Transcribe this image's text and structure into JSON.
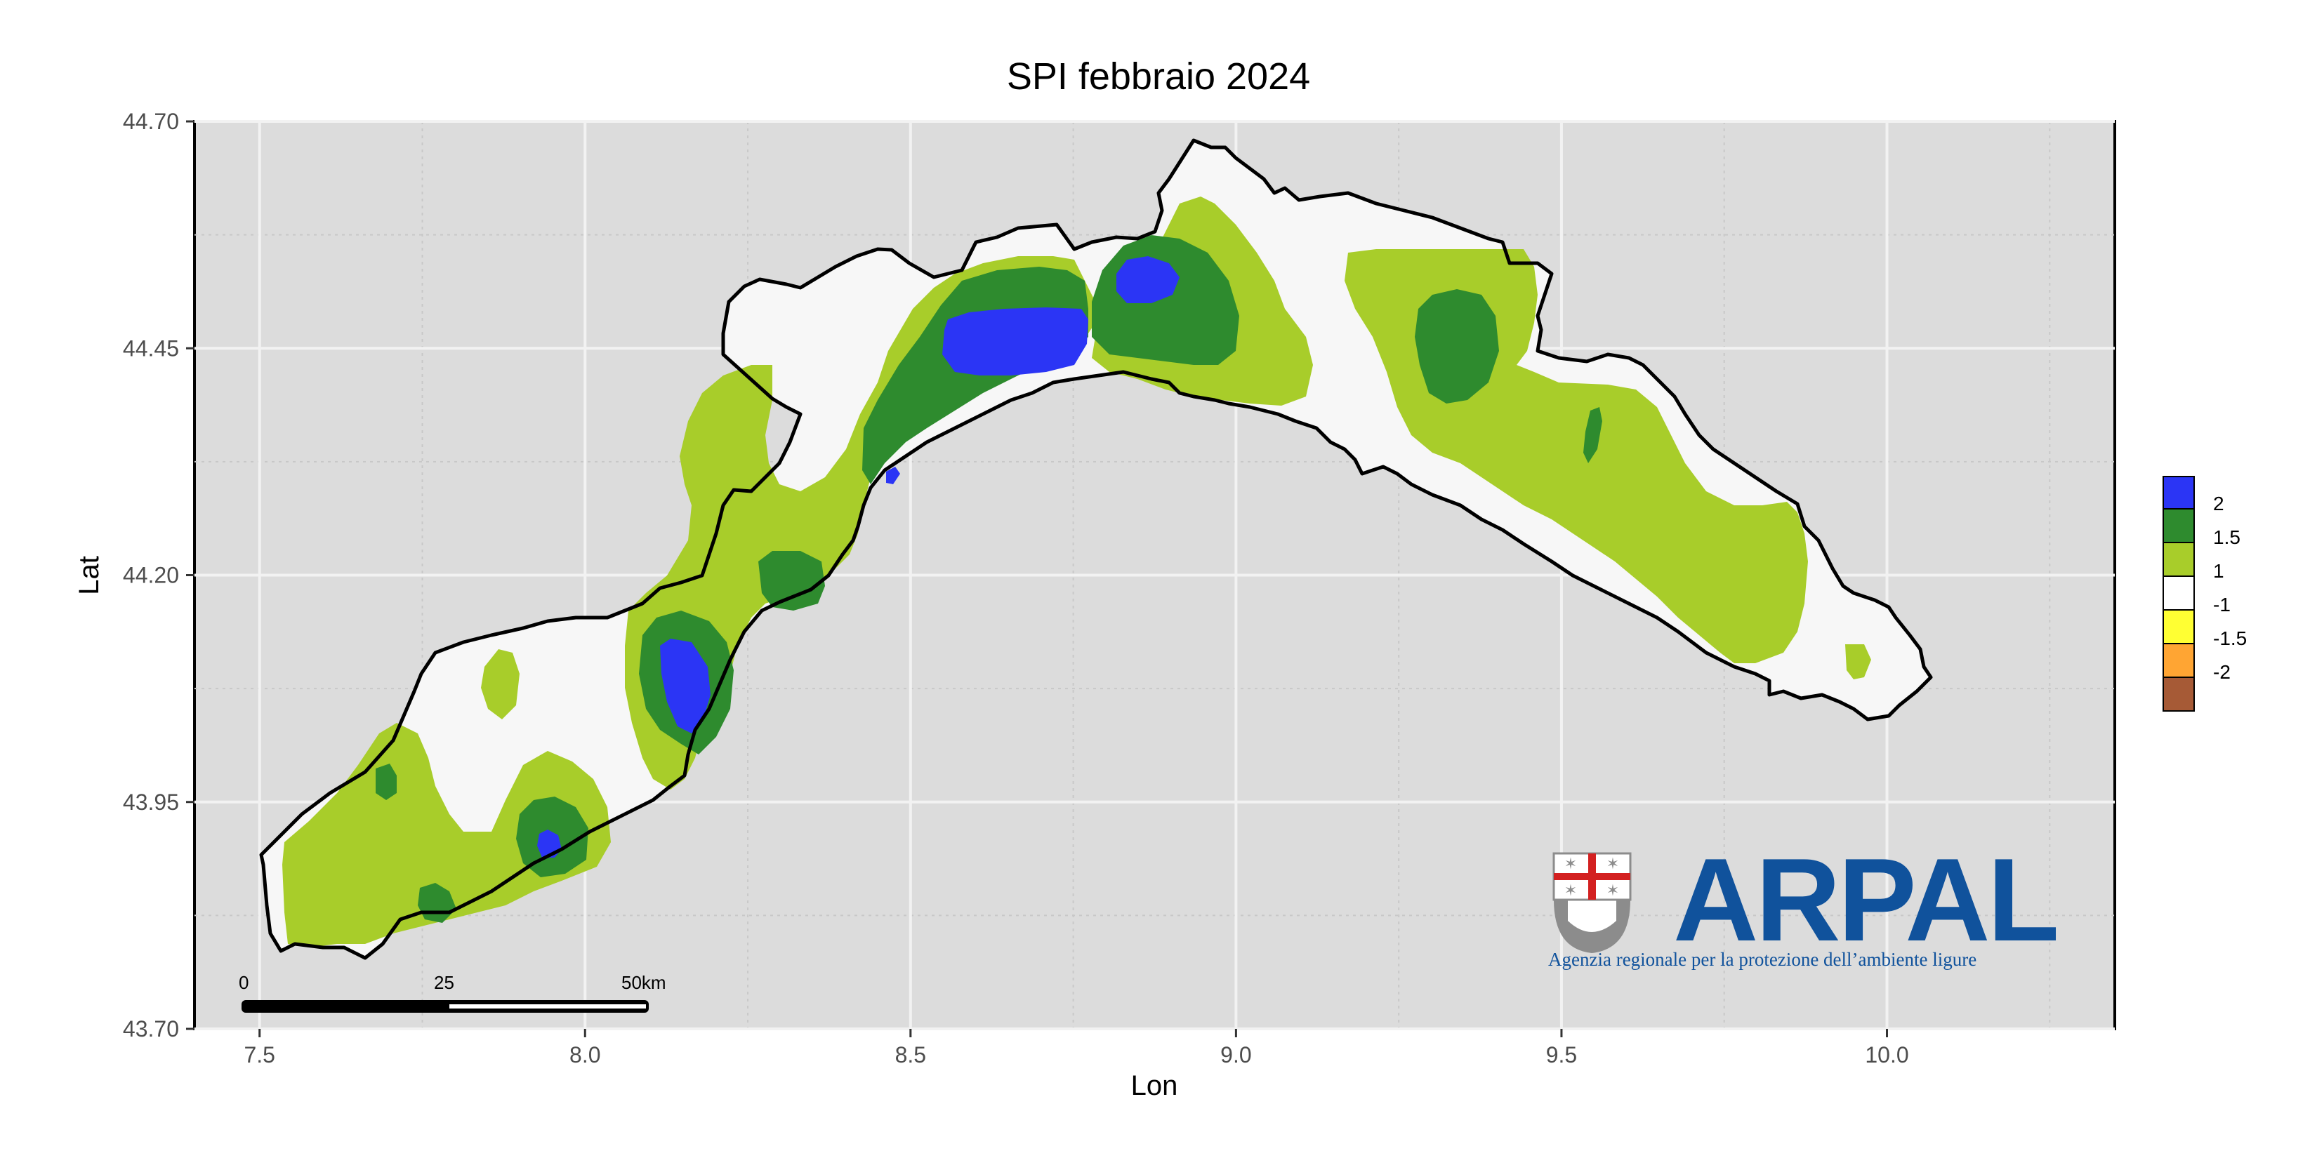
{
  "title": "SPI febbraio 2024",
  "x_axis": {
    "label": "Lon",
    "ticks": [
      "7.5",
      "8.0",
      "8.5",
      "9.0",
      "9.5",
      "10.0"
    ],
    "range": [
      7.4,
      10.35
    ]
  },
  "y_axis": {
    "label": "Lat",
    "ticks": [
      "43.70",
      "43.95",
      "44.20",
      "44.45",
      "44.70"
    ],
    "range": [
      43.7,
      44.7
    ]
  },
  "panel_background": "#dcdcdc",
  "legend": {
    "position": "right",
    "items": [
      {
        "label": "2",
        "color": "#2b35f5"
      },
      {
        "label": "1.5",
        "color": "#2e8b2e"
      },
      {
        "label": "1",
        "color": "#a8cd2a"
      },
      {
        "label": "-1",
        "color": "#ffffff"
      },
      {
        "label": "-1.5",
        "color": "#ffff33"
      },
      {
        "label": "-2",
        "color": "#ffa533"
      },
      {
        "label": "",
        "color": "#a65a36"
      }
    ]
  },
  "scale_bar": {
    "labels": [
      "0",
      "25",
      "50km"
    ]
  },
  "logo": {
    "wordmark": "ARPAL",
    "subtitle": "Agenzia regionale per la protezione dell’ambiente ligure",
    "color": "#10529c"
  },
  "map_regions": [
    {
      "name": "white-area",
      "class": "1 to -1"
    },
    {
      "name": "light-green-area",
      "class": "1 to 1.5"
    },
    {
      "name": "dark-green-area",
      "class": "1.5 to 2"
    },
    {
      "name": "blue-area",
      "class": "> 2"
    }
  ]
}
